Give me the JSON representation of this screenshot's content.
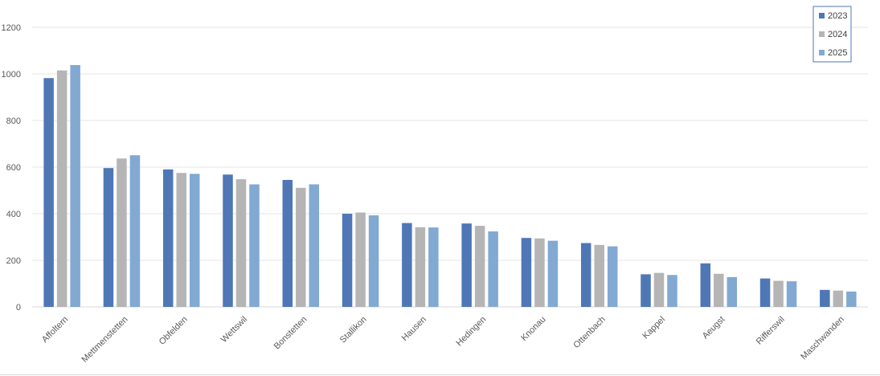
{
  "chart_data": {
    "type": "bar",
    "title": "",
    "xlabel": "",
    "ylabel": "",
    "ylim": [
      0,
      1200
    ],
    "yticks": [
      0,
      200,
      400,
      600,
      800,
      1000,
      1200
    ],
    "grid": true,
    "legend_position": "top-right",
    "categories": [
      "Affoltern",
      "Mettmenstetten",
      "Obfelden",
      "Wettswil",
      "Bonstetten",
      "Stallikon",
      "Hausen",
      "Hedingen",
      "Knonau",
      "Ottenbach",
      "Kappel",
      "Aeugst",
      "Rifferswil",
      "Maschwanden"
    ],
    "series": [
      {
        "name": "2023",
        "color": "#4f77b6",
        "values": [
          982,
          596,
          590,
          568,
          545,
          400,
          360,
          358,
          296,
          274,
          140,
          187,
          122,
          73
        ]
      },
      {
        "name": "2024",
        "color": "#b5b5b5",
        "values": [
          1015,
          637,
          575,
          548,
          511,
          405,
          342,
          348,
          294,
          266,
          146,
          142,
          112,
          70
        ]
      },
      {
        "name": "2025",
        "color": "#81a9d2",
        "values": [
          1038,
          651,
          571,
          526,
          526,
          393,
          341,
          324,
          284,
          260,
          137,
          128,
          110,
          66
        ]
      }
    ]
  }
}
